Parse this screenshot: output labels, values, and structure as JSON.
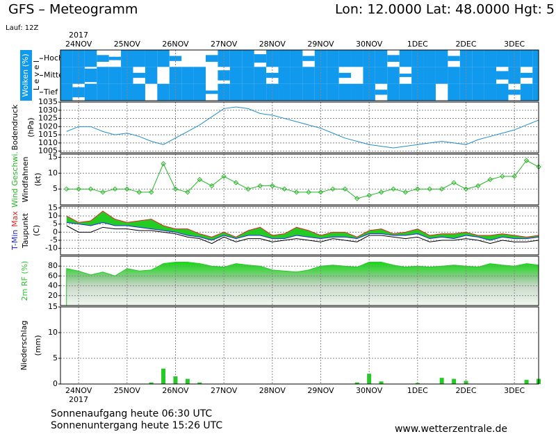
{
  "header": {
    "title": "GFS – Meteogramm",
    "location": "Lon: 12.0000 Lat: 48.0000 Hgt: 5",
    "run": "Lauf: 12Z"
  },
  "footer": {
    "sunrise": "Sonnenaufgang heute 06:30 UTC",
    "sunset": "Sonnenuntergang heute 15:26 UTC",
    "source": "www.wetterzentrale.de"
  },
  "chart_data": [
    {
      "type": "cloud",
      "ylabel": [
        "Wolken (%)"
      ],
      "axis_label": "L e v e l",
      "year_label": "2017",
      "color": "#1199ee",
      "xlim": [
        -0.375,
        9.5
      ],
      "xticks": [
        {
          "value": 0,
          "label": "24NOV"
        },
        {
          "value": 1,
          "label": "25NOV"
        },
        {
          "value": 2,
          "label": "26NOV"
        },
        {
          "value": 3,
          "label": "27NOV"
        },
        {
          "value": 4,
          "label": "28NOV"
        },
        {
          "value": 5,
          "label": "29NOV"
        },
        {
          "value": 6,
          "label": "30NOV"
        },
        {
          "value": 7,
          "label": "1DEC"
        },
        {
          "value": 8,
          "label": "2DEC"
        },
        {
          "value": 9,
          "label": "3DEC"
        }
      ],
      "x": [
        -0.25,
        0,
        0.25,
        0.5,
        0.75,
        1,
        1.25,
        1.5,
        1.75,
        2,
        2.25,
        2.5,
        2.75,
        3,
        3.25,
        3.5,
        3.75,
        4,
        4.25,
        4.5,
        4.75,
        5,
        5.25,
        5.5,
        5.75,
        6,
        6.25,
        6.5,
        6.75,
        7,
        7.25,
        7.5,
        7.75,
        8,
        8.25,
        8.5,
        8.75,
        9,
        9.25,
        9.5
      ],
      "series": [
        {
          "name": "Hoch",
          "values": [
            100,
            100,
            100,
            40,
            20,
            100,
            100,
            100,
            100,
            30,
            0,
            0,
            40,
            100,
            100,
            100,
            50,
            100,
            100,
            100,
            30,
            100,
            100,
            100,
            100,
            100,
            100,
            40,
            100,
            100,
            100,
            100,
            30,
            100,
            100,
            100,
            100,
            100,
            100,
            100
          ]
        },
        {
          "name": "Mittel",
          "values": [
            100,
            100,
            80,
            100,
            100,
            100,
            30,
            100,
            0,
            100,
            100,
            100,
            0,
            60,
            100,
            100,
            100,
            30,
            100,
            100,
            100,
            100,
            100,
            30,
            0,
            100,
            100,
            100,
            20,
            100,
            100,
            100,
            100,
            100,
            100,
            100,
            50,
            100,
            30,
            100
          ]
        },
        {
          "name": "Tief",
          "values": [
            100,
            60,
            100,
            100,
            100,
            100,
            100,
            0,
            100,
            100,
            100,
            100,
            20,
            100,
            100,
            100,
            100,
            100,
            100,
            100,
            100,
            100,
            100,
            100,
            100,
            100,
            30,
            100,
            100,
            100,
            100,
            0,
            100,
            100,
            100,
            100,
            100,
            30,
            100,
            100
          ]
        }
      ]
    },
    {
      "type": "line",
      "ylabel": [
        "Bodendruck",
        "(hPa)"
      ],
      "ylim": [
        1004,
        1035
      ],
      "yticks": [
        1005,
        1010,
        1015,
        1020,
        1025,
        1030,
        1035
      ],
      "grid": true,
      "x": [
        -0.25,
        0,
        0.25,
        0.5,
        0.75,
        1,
        1.25,
        1.5,
        1.75,
        2,
        2.25,
        2.5,
        2.75,
        3,
        3.25,
        3.5,
        3.75,
        4,
        4.25,
        4.5,
        4.75,
        5,
        5.25,
        5.5,
        5.75,
        6,
        6.25,
        6.5,
        6.75,
        7,
        7.25,
        7.5,
        7.75,
        8,
        8.25,
        8.5,
        8.75,
        9,
        9.25,
        9.5
      ],
      "series": [
        {
          "color": "#1e90d8",
          "values": [
            1017,
            1020,
            1020,
            1017,
            1015,
            1016,
            1014,
            1011,
            1009,
            1013,
            1017,
            1021,
            1026,
            1031,
            1032,
            1031,
            1028,
            1027,
            1025,
            1023,
            1021,
            1019,
            1016,
            1013,
            1011,
            1009,
            1008,
            1007,
            1008,
            1009,
            1010,
            1011,
            1010,
            1009,
            1012,
            1014,
            1016,
            1018,
            1021,
            1024
          ]
        }
      ]
    },
    {
      "type": "line",
      "ylabel": [
        "Windfahnen",
        "(kt)"
      ],
      "ylim": [
        0,
        16
      ],
      "yticks": [
        5,
        10,
        15
      ],
      "grid": true,
      "markers": true,
      "x": [
        -0.25,
        0,
        0.25,
        0.5,
        0.75,
        1,
        1.25,
        1.5,
        1.75,
        2,
        2.25,
        2.5,
        2.75,
        3,
        3.25,
        3.5,
        3.75,
        4,
        4.25,
        4.5,
        4.75,
        5,
        5.25,
        5.5,
        5.75,
        6,
        6.25,
        6.5,
        6.75,
        7,
        7.25,
        7.5,
        7.75,
        8,
        8.25,
        8.5,
        8.75,
        9,
        9.25,
        9.5
      ],
      "series": [
        {
          "name": "Wind Geschwi.",
          "color": "#22bb22",
          "values": [
            5,
            5,
            5,
            4,
            5,
            5,
            4,
            4,
            13,
            5,
            4,
            8,
            6,
            9,
            7,
            5,
            6,
            6,
            5,
            4,
            4,
            4,
            5,
            5,
            2,
            3,
            4,
            5,
            4,
            5,
            5,
            5,
            7,
            5,
            6,
            8,
            9,
            9,
            14,
            12
          ]
        }
      ]
    },
    {
      "type": "line",
      "ylabel": [
        "(C)"
      ],
      "ylim": [
        -14,
        16
      ],
      "yticks": [
        -10,
        -5,
        0,
        5,
        10,
        15
      ],
      "grid": true,
      "range_fill": "#22cc22",
      "x": [
        -0.25,
        0,
        0.25,
        0.5,
        0.75,
        1,
        1.25,
        1.5,
        1.75,
        2,
        2.25,
        2.5,
        2.75,
        3,
        3.25,
        3.5,
        3.75,
        4,
        4.25,
        4.5,
        4.75,
        5,
        5.25,
        5.5,
        5.75,
        6,
        6.25,
        6.5,
        6.75,
        7,
        7.25,
        7.5,
        7.75,
        8,
        8.25,
        8.5,
        8.75,
        9,
        9.25,
        9.5
      ],
      "series": [
        {
          "name": "T-Min",
          "color": "#2222ee",
          "values": [
            6,
            5,
            4,
            6,
            4,
            4,
            3,
            2,
            1,
            0,
            -2,
            -3,
            -5,
            -2,
            -4,
            -2,
            -2,
            -4,
            -4,
            -2,
            -3,
            -4,
            -3,
            -3,
            -4,
            -1,
            -1,
            -2,
            -2,
            -1,
            -4,
            -3,
            -4,
            -2,
            -3,
            -5,
            -3,
            -4,
            -4,
            -3
          ]
        },
        {
          "name": "Max",
          "color": "#ee2222",
          "values": [
            10,
            6,
            7,
            13,
            8,
            6,
            7,
            8,
            4,
            2,
            2,
            -1,
            -3,
            0,
            -3,
            1,
            3,
            -2,
            -1,
            3,
            1,
            -2,
            0,
            0,
            -3,
            1,
            2,
            -1,
            0,
            2,
            -2,
            -1,
            -1,
            0,
            -2,
            -2,
            -1,
            -2,
            -3,
            -2
          ]
        },
        {
          "name": "Taupunkt",
          "color": "#000000",
          "values": [
            4,
            0,
            0,
            3,
            2,
            2,
            1,
            1,
            0,
            -1,
            -3,
            -4,
            -7,
            -3,
            -6,
            -4,
            -4,
            -6,
            -5,
            -4,
            -5,
            -6,
            -4,
            -5,
            -6,
            -2,
            -2,
            -3,
            -4,
            -3,
            -6,
            -5,
            -5,
            -4,
            -5,
            -7,
            -5,
            -6,
            -6,
            -5
          ]
        }
      ]
    },
    {
      "type": "area",
      "ylim": [
        0,
        100
      ],
      "yticks": [
        20,
        40,
        60,
        80
      ],
      "grid": true,
      "x": [
        -0.25,
        0,
        0.25,
        0.5,
        0.75,
        1,
        1.25,
        1.5,
        1.75,
        2,
        2.25,
        2.5,
        2.75,
        3,
        3.25,
        3.5,
        3.75,
        4,
        4.25,
        4.5,
        4.75,
        5,
        5.25,
        5.5,
        5.75,
        6,
        6.25,
        6.5,
        6.75,
        7,
        7.25,
        7.5,
        7.75,
        8,
        8.25,
        8.5,
        8.75,
        9,
        9.25,
        9.5
      ],
      "series": [
        {
          "name": "2m RF (%)",
          "color": "#22cc22",
          "values": [
            75,
            70,
            62,
            68,
            60,
            75,
            70,
            72,
            85,
            88,
            88,
            85,
            80,
            78,
            85,
            82,
            80,
            72,
            70,
            68,
            72,
            80,
            82,
            80,
            78,
            88,
            88,
            82,
            78,
            80,
            78,
            80,
            82,
            80,
            78,
            85,
            82,
            80,
            85,
            82
          ]
        }
      ]
    },
    {
      "type": "bar",
      "ylabel": [
        "Niederschlag",
        "(mm)"
      ],
      "ylim": [
        0,
        15
      ],
      "yticks": [
        0,
        5,
        10,
        15
      ],
      "grid": true,
      "x": [
        -0.25,
        0,
        0.25,
        0.5,
        0.75,
        1,
        1.25,
        1.5,
        1.75,
        2,
        2.25,
        2.5,
        2.75,
        3,
        3.25,
        3.5,
        3.75,
        4,
        4.25,
        4.5,
        4.75,
        5,
        5.25,
        5.5,
        5.75,
        6,
        6.25,
        6.5,
        6.75,
        7,
        7.25,
        7.5,
        7.75,
        8,
        8.25,
        8.5,
        8.75,
        9,
        9.25,
        9.5
      ],
      "series": [
        {
          "color": "#22cc22",
          "values": [
            0,
            0,
            0,
            0,
            0,
            0,
            0,
            0.3,
            3,
            1.5,
            1,
            0.3,
            0,
            0,
            0,
            0,
            0,
            0,
            0,
            0,
            0,
            0,
            0,
            0,
            0.3,
            2,
            0.5,
            0,
            0,
            0.2,
            0,
            1.2,
            1,
            0.6,
            0,
            0,
            0,
            0,
            0.8,
            1
          ]
        }
      ]
    }
  ]
}
